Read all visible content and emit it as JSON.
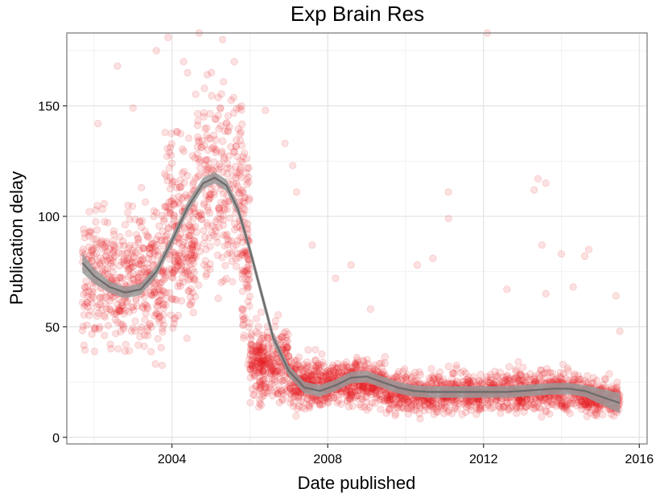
{
  "chart_data": {
    "type": "scatter",
    "title": "Exp Brain Res",
    "xlabel": "Date published",
    "ylabel": "Publication delay",
    "xlim": [
      2001.3,
      2016.2
    ],
    "ylim": [
      -3,
      183
    ],
    "xticks": [
      2004,
      2008,
      2012,
      2016
    ],
    "xtick_labels": [
      "2004",
      "2008",
      "2012",
      "2016"
    ],
    "yticks": [
      0,
      50,
      100,
      150
    ],
    "ytick_labels": [
      "0",
      "50",
      "100",
      "150"
    ],
    "grid": true,
    "point_color": "#e41a1c",
    "point_opacity": 0.13,
    "smooth_color": "#6b6b6b",
    "smooth_band_color": "#9a9a9a",
    "point_clusters": [
      {
        "x_range": [
          2001.7,
          2002.9
        ],
        "y_center": 72,
        "y_spread": 26,
        "count": 260
      },
      {
        "x_range": [
          2002.9,
          2003.8
        ],
        "y_center": 72,
        "y_spread": 28,
        "count": 220
      },
      {
        "x_range": [
          2003.8,
          2004.6
        ],
        "y_center": 90,
        "y_spread": 35,
        "count": 240
      },
      {
        "x_range": [
          2004.6,
          2005.8
        ],
        "y_center": 115,
        "y_spread": 40,
        "count": 260
      },
      {
        "x_range": [
          2005.8,
          2006.0
        ],
        "y_center": 85,
        "y_spread": 45,
        "count": 90
      },
      {
        "x_range": [
          2006.0,
          2007.0
        ],
        "y_center": 34,
        "y_spread": 14,
        "count": 300
      },
      {
        "x_range": [
          2007.0,
          2008.0
        ],
        "y_center": 24,
        "y_spread": 10,
        "count": 280
      },
      {
        "x_range": [
          2008.0,
          2009.5
        ],
        "y_center": 25,
        "y_spread": 9,
        "count": 380
      },
      {
        "x_range": [
          2009.5,
          2012.0
        ],
        "y_center": 20,
        "y_spread": 8,
        "count": 560
      },
      {
        "x_range": [
          2012.0,
          2014.5
        ],
        "y_center": 21,
        "y_spread": 8,
        "count": 520
      },
      {
        "x_range": [
          2014.5,
          2015.5
        ],
        "y_center": 18,
        "y_spread": 7,
        "count": 220
      }
    ],
    "outliers": [
      {
        "x": 2002.6,
        "y": 168
      },
      {
        "x": 2002.1,
        "y": 142
      },
      {
        "x": 2003.0,
        "y": 149
      },
      {
        "x": 2003.6,
        "y": 175
      },
      {
        "x": 2003.9,
        "y": 181
      },
      {
        "x": 2004.4,
        "y": 165
      },
      {
        "x": 2004.7,
        "y": 183
      },
      {
        "x": 2004.3,
        "y": 170
      },
      {
        "x": 2005.3,
        "y": 180
      },
      {
        "x": 2005.6,
        "y": 170
      },
      {
        "x": 2006.4,
        "y": 148
      },
      {
        "x": 2006.9,
        "y": 133
      },
      {
        "x": 2007.1,
        "y": 123
      },
      {
        "x": 2007.2,
        "y": 111
      },
      {
        "x": 2007.6,
        "y": 87
      },
      {
        "x": 2008.2,
        "y": 72
      },
      {
        "x": 2008.6,
        "y": 78
      },
      {
        "x": 2009.1,
        "y": 58
      },
      {
        "x": 2010.3,
        "y": 78
      },
      {
        "x": 2010.7,
        "y": 81
      },
      {
        "x": 2011.1,
        "y": 111
      },
      {
        "x": 2011.1,
        "y": 99
      },
      {
        "x": 2012.1,
        "y": 183
      },
      {
        "x": 2012.6,
        "y": 67
      },
      {
        "x": 2013.3,
        "y": 112
      },
      {
        "x": 2013.4,
        "y": 117
      },
      {
        "x": 2013.6,
        "y": 115
      },
      {
        "x": 2013.5,
        "y": 87
      },
      {
        "x": 2013.6,
        "y": 65
      },
      {
        "x": 2014.0,
        "y": 83
      },
      {
        "x": 2014.3,
        "y": 68
      },
      {
        "x": 2014.6,
        "y": 82
      },
      {
        "x": 2014.7,
        "y": 85
      },
      {
        "x": 2015.4,
        "y": 64
      },
      {
        "x": 2015.5,
        "y": 48
      }
    ],
    "smooth_curve": [
      {
        "x": 2001.7,
        "y": 79
      },
      {
        "x": 2002.0,
        "y": 73
      },
      {
        "x": 2002.4,
        "y": 68
      },
      {
        "x": 2002.8,
        "y": 65.5
      },
      {
        "x": 2003.2,
        "y": 67
      },
      {
        "x": 2003.6,
        "y": 75
      },
      {
        "x": 2004.0,
        "y": 89
      },
      {
        "x": 2004.4,
        "y": 104
      },
      {
        "x": 2004.8,
        "y": 115
      },
      {
        "x": 2005.1,
        "y": 117.5
      },
      {
        "x": 2005.4,
        "y": 114
      },
      {
        "x": 2005.7,
        "y": 103
      },
      {
        "x": 2006.0,
        "y": 85
      },
      {
        "x": 2006.3,
        "y": 65
      },
      {
        "x": 2006.6,
        "y": 45
      },
      {
        "x": 2007.0,
        "y": 30
      },
      {
        "x": 2007.4,
        "y": 22.5
      },
      {
        "x": 2007.8,
        "y": 21
      },
      {
        "x": 2008.2,
        "y": 23.5
      },
      {
        "x": 2008.6,
        "y": 27
      },
      {
        "x": 2009.0,
        "y": 27.5
      },
      {
        "x": 2009.4,
        "y": 25
      },
      {
        "x": 2009.8,
        "y": 22.5
      },
      {
        "x": 2010.2,
        "y": 21
      },
      {
        "x": 2010.6,
        "y": 20.5
      },
      {
        "x": 2011.0,
        "y": 20.5
      },
      {
        "x": 2011.4,
        "y": 20.5
      },
      {
        "x": 2011.8,
        "y": 20.5
      },
      {
        "x": 2012.2,
        "y": 20.5
      },
      {
        "x": 2012.6,
        "y": 20.5
      },
      {
        "x": 2013.0,
        "y": 21
      },
      {
        "x": 2013.4,
        "y": 21.5
      },
      {
        "x": 2013.8,
        "y": 22
      },
      {
        "x": 2014.2,
        "y": 22
      },
      {
        "x": 2014.6,
        "y": 21
      },
      {
        "x": 2015.0,
        "y": 18.5
      },
      {
        "x": 2015.5,
        "y": 15.5
      }
    ]
  }
}
